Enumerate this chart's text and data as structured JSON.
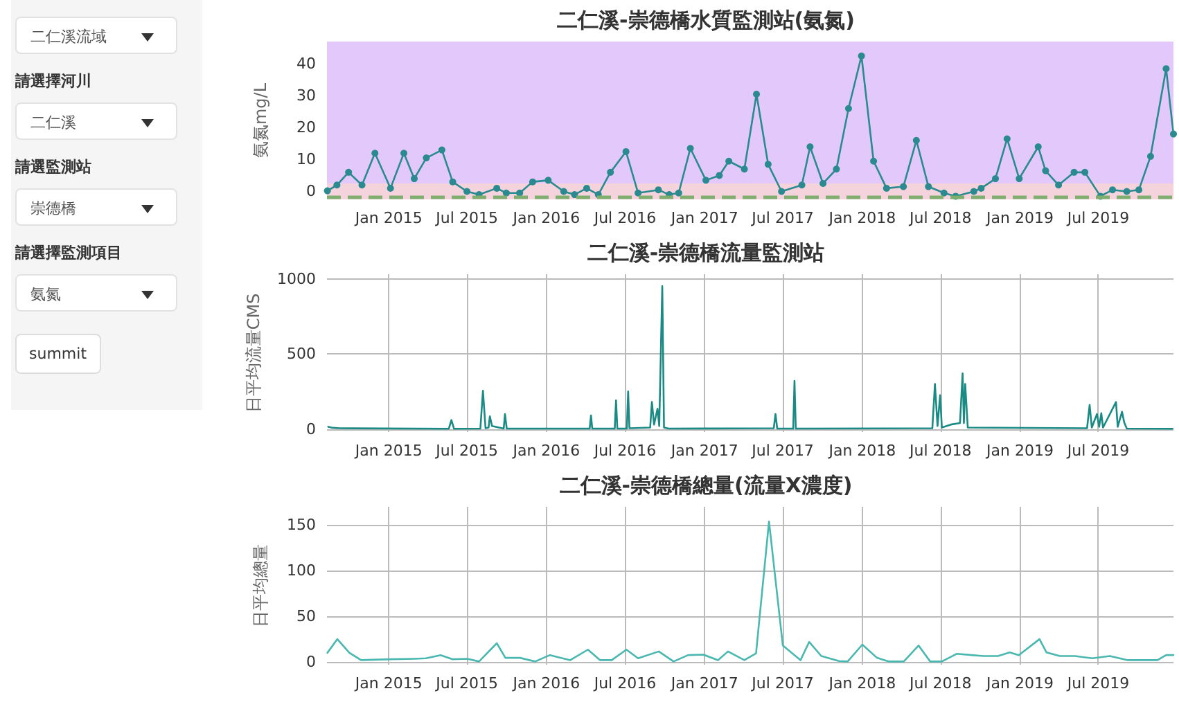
{
  "chart_data": [
    {
      "type": "other",
      "annotations": [
        "二仁溪流域",
        "請選擇河川",
        "二仁溪",
        "請選監測站",
        "崇德橋",
        "請選擇監測項目",
        "氨氮",
        "summit"
      ]
    },
    {
      "type": "line",
      "title": "二仁溪-崇德橋水質監測站(氨氮)",
      "ylabel": "氨氮mg/L",
      "marker": "circle",
      "grid": true,
      "xlim": [
        "2014-08-11",
        "2019-12-22"
      ],
      "ylim": [
        -2.5,
        47
      ],
      "yticks": [
        0,
        10,
        20,
        30,
        40
      ],
      "xticks": [
        {
          "value": "2015-01-01",
          "label": "Jan 2015"
        },
        {
          "value": "2015-07-01",
          "label": "Jul 2015"
        },
        {
          "value": "2016-01-01",
          "label": "Jan 2016"
        },
        {
          "value": "2016-07-01",
          "label": "Jul 2016"
        },
        {
          "value": "2017-01-01",
          "label": "Jan 2017"
        },
        {
          "value": "2017-07-01",
          "label": "Jul 2017"
        },
        {
          "value": "2018-01-01",
          "label": "Jan 2018"
        },
        {
          "value": "2018-07-01",
          "label": "Jul 2018"
        },
        {
          "value": "2019-01-01",
          "label": "Jan 2019"
        },
        {
          "value": "2019-07-01",
          "label": "Jul 2019"
        }
      ],
      "bands": [
        {
          "axis": "y",
          "from": 2.5,
          "to": 47,
          "color": "#e3c9fb"
        },
        {
          "axis": "y",
          "from": -2.5,
          "to": 2.5,
          "color": "#f4d3dc"
        }
      ],
      "ref_lines": [
        {
          "axis": "y",
          "value": -1.8,
          "color": "#7fae6e",
          "line_style": "dashed"
        }
      ],
      "x": [
        "2014-08-12",
        "2014-09-03",
        "2014-09-30",
        "2014-10-31",
        "2014-11-30",
        "2015-01-05",
        "2015-02-05",
        "2015-03-01",
        "2015-03-29",
        "2015-05-04",
        "2015-05-29",
        "2015-07-01",
        "2015-07-29",
        "2015-09-08",
        "2015-09-30",
        "2015-10-31",
        "2015-11-30",
        "2016-01-05",
        "2016-02-10",
        "2016-03-06",
        "2016-04-03",
        "2016-04-30",
        "2016-05-28",
        "2016-07-03",
        "2016-07-31",
        "2016-09-16",
        "2016-10-11",
        "2016-11-02",
        "2016-11-29",
        "2017-01-04",
        "2017-02-04",
        "2017-02-26",
        "2017-04-03",
        "2017-05-01",
        "2017-05-28",
        "2017-06-28",
        "2017-08-14",
        "2017-09-02",
        "2017-10-02",
        "2017-11-02",
        "2017-11-30",
        "2017-12-30",
        "2018-01-27",
        "2018-02-26",
        "2018-04-06",
        "2018-05-06",
        "2018-06-03",
        "2018-07-09",
        "2018-08-05",
        "2018-09-16",
        "2018-10-03",
        "2018-11-05",
        "2018-12-02",
        "2018-12-30",
        "2019-02-12",
        "2019-03-01",
        "2019-03-31",
        "2019-05-06",
        "2019-05-31",
        "2019-07-06",
        "2019-08-03",
        "2019-09-05",
        "2019-10-03",
        "2019-10-30",
        "2019-12-05",
        "2019-12-22"
      ],
      "series": [
        {
          "color": "#2a8a8f",
          "values": [
            0.2,
            2,
            6,
            2,
            12,
            1,
            12,
            4,
            10.5,
            13,
            3,
            0,
            -1,
            1,
            -0.5,
            -0.5,
            3,
            3.5,
            0,
            -1,
            1,
            -1,
            6,
            12.5,
            -0.5,
            0.5,
            -1,
            -0.5,
            13.5,
            3.5,
            5,
            9.5,
            7,
            30.5,
            8.5,
            0,
            2,
            14,
            2.5,
            7,
            26,
            42.5,
            9.5,
            1,
            1.5,
            16,
            1.5,
            -0.5,
            -1.5,
            0,
            1,
            4,
            16.5,
            4,
            14,
            6.5,
            2,
            6,
            6,
            -1.5,
            0.5,
            0,
            0.5,
            11,
            38.5,
            18
          ]
        }
      ]
    },
    {
      "type": "line",
      "title": "二仁溪-崇德橋流量監測站",
      "ylabel": "日平均流量CMS",
      "grid": true,
      "xlim": [
        "2014-08-11",
        "2019-12-22"
      ],
      "ylim": [
        -20,
        1030
      ],
      "yticks": [
        0,
        500,
        1000
      ],
      "xticks": [
        {
          "value": "2015-01-01",
          "label": "Jan 2015"
        },
        {
          "value": "2015-07-01",
          "label": "Jul 2015"
        },
        {
          "value": "2016-01-01",
          "label": "Jan 2016"
        },
        {
          "value": "2016-07-01",
          "label": "Jul 2016"
        },
        {
          "value": "2017-01-01",
          "label": "Jan 2017"
        },
        {
          "value": "2017-07-01",
          "label": "Jul 2017"
        },
        {
          "value": "2018-01-01",
          "label": "Jan 2018"
        },
        {
          "value": "2018-07-01",
          "label": "Jul 2018"
        },
        {
          "value": "2019-01-01",
          "label": "Jan 2019"
        },
        {
          "value": "2019-07-01",
          "label": "Jul 2019"
        }
      ],
      "x": [
        "2014-08-14",
        "2014-08-25",
        "2014-09-10",
        "2015-05-20",
        "2015-05-26",
        "2015-06-01",
        "2015-08-01",
        "2015-08-07",
        "2015-08-13",
        "2015-08-20",
        "2015-08-23",
        "2015-08-28",
        "2015-09-24",
        "2015-09-27",
        "2015-10-01",
        "2016-04-10",
        "2016-04-13",
        "2016-04-16",
        "2016-06-07",
        "2016-06-10",
        "2016-06-13",
        "2016-07-05",
        "2016-07-08",
        "2016-07-11",
        "2016-08-28",
        "2016-09-01",
        "2016-09-06",
        "2016-09-14",
        "2016-09-18",
        "2016-09-25",
        "2016-09-29",
        "2016-10-10",
        "2017-06-10",
        "2017-06-14",
        "2017-06-18",
        "2017-07-25",
        "2017-07-28",
        "2017-07-31",
        "2018-06-12",
        "2018-06-18",
        "2018-06-24",
        "2018-06-30",
        "2018-07-04",
        "2018-07-25",
        "2018-08-15",
        "2018-08-21",
        "2018-08-24",
        "2018-08-27",
        "2018-09-02",
        "2019-06-05",
        "2019-06-11",
        "2019-06-16",
        "2019-06-28",
        "2019-07-03",
        "2019-07-08",
        "2019-07-12",
        "2019-08-11",
        "2019-08-15",
        "2019-08-25",
        "2019-08-30",
        "2019-09-05",
        "2019-12-20"
      ],
      "series": [
        {
          "color": "#1a8a85",
          "values": [
            15,
            8,
            5,
            2,
            60,
            2,
            3,
            255,
            5,
            10,
            85,
            20,
            3,
            100,
            3,
            3,
            90,
            3,
            3,
            190,
            3,
            3,
            250,
            5,
            10,
            180,
            30,
            135,
            20,
            950,
            10,
            3,
            5,
            100,
            3,
            3,
            320,
            3,
            5,
            300,
            20,
            225,
            10,
            30,
            40,
            370,
            40,
            300,
            10,
            5,
            160,
            10,
            100,
            15,
            105,
            10,
            180,
            15,
            115,
            45,
            3,
            2
          ]
        }
      ]
    },
    {
      "type": "line",
      "title": "二仁溪-崇德橋總量(流量X濃度)",
      "ylabel": "日平均總量",
      "grid": true,
      "xlim": [
        "2014-08-11",
        "2019-12-22"
      ],
      "ylim": [
        -3,
        170
      ],
      "yticks": [
        0,
        50,
        100,
        150
      ],
      "xticks": [
        {
          "value": "2015-01-01",
          "label": "Jan 2015"
        },
        {
          "value": "2015-07-01",
          "label": "Jul 2015"
        },
        {
          "value": "2016-01-01",
          "label": "Jan 2016"
        },
        {
          "value": "2016-07-01",
          "label": "Jul 2016"
        },
        {
          "value": "2017-01-01",
          "label": "Jan 2017"
        },
        {
          "value": "2017-07-01",
          "label": "Jul 2017"
        },
        {
          "value": "2018-01-01",
          "label": "Jan 2018"
        },
        {
          "value": "2018-07-01",
          "label": "Jul 2018"
        },
        {
          "value": "2019-01-01",
          "label": "Jan 2019"
        },
        {
          "value": "2019-07-01",
          "label": "Jul 2019"
        }
      ],
      "x": [
        "2014-08-12",
        "2014-09-04",
        "2014-10-02",
        "2014-10-29",
        "2015-01-05",
        "2015-03-01",
        "2015-03-28",
        "2015-05-01",
        "2015-05-28",
        "2015-07-02",
        "2015-07-29",
        "2015-09-08",
        "2015-09-28",
        "2015-11-01",
        "2015-12-06",
        "2016-01-09",
        "2016-02-25",
        "2016-04-06",
        "2016-05-04",
        "2016-05-31",
        "2016-07-04",
        "2016-07-31",
        "2016-09-17",
        "2016-10-21",
        "2016-11-24",
        "2016-12-29",
        "2017-02-01",
        "2017-02-24",
        "2017-04-03",
        "2017-04-30",
        "2017-05-30",
        "2017-07-01",
        "2017-08-11",
        "2017-08-31",
        "2017-09-28",
        "2017-11-08",
        "2017-11-28",
        "2018-01-01",
        "2018-02-04",
        "2018-03-04",
        "2018-04-07",
        "2018-05-11",
        "2018-06-07",
        "2018-07-04",
        "2018-08-08",
        "2018-09-11",
        "2018-10-08",
        "2018-11-11",
        "2018-12-08",
        "2018-12-29",
        "2019-02-15",
        "2019-03-03",
        "2019-04-03",
        "2019-05-08",
        "2019-06-17",
        "2019-07-28",
        "2019-09-07",
        "2019-10-18",
        "2019-11-15",
        "2019-12-05",
        "2019-12-22"
      ],
      "series": [
        {
          "color": "#4ab8b0",
          "values": [
            10,
            25,
            10,
            2,
            3,
            3.5,
            4,
            7.5,
            3,
            3.5,
            0.5,
            20.5,
            4.5,
            4.5,
            0.5,
            7.5,
            2,
            13.5,
            2,
            2,
            13.5,
            4,
            11.5,
            0.5,
            7.5,
            8,
            2,
            11.5,
            2,
            9.5,
            154,
            18,
            2,
            22,
            6.5,
            1,
            0.5,
            19,
            4.5,
            0.5,
            0.5,
            18,
            0.5,
            0.5,
            9,
            7.5,
            6.5,
            6.5,
            10.5,
            7.5,
            25,
            10.5,
            6.5,
            6.5,
            4,
            6.5,
            2,
            2,
            2,
            7.5,
            7.5
          ]
        }
      ]
    }
  ]
}
